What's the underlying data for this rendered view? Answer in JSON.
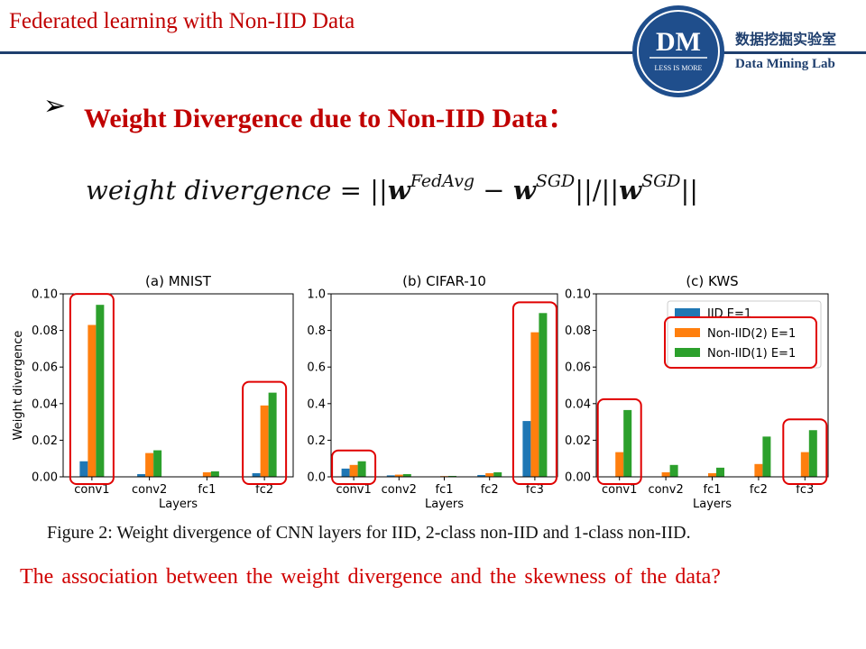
{
  "header": {
    "title": "Federated learning with Non-IID Data",
    "logo_text": "DM",
    "logo_tagline": "LESS IS MORE",
    "lab_name_cn": "数据挖掘实验室",
    "lab_name_en": "Data Mining Lab"
  },
  "section": {
    "bullet": "➢",
    "heading": "Weight Divergence due to Non-IID Data："
  },
  "formula": {
    "lhs": "weight divergence",
    "eq": " = ||",
    "w1": "w",
    "sup1": "FedAvg",
    "minus": " − ",
    "w2": "w",
    "sup2": "SGD",
    "mid": "||/||",
    "w3": "w",
    "sup3": "SGD",
    "end": "||"
  },
  "colors": {
    "iid": "#1f77b4",
    "noniid2": "#ff7f0e",
    "noniid1": "#2ca02c",
    "highlight": "#e00000"
  },
  "chart_data": [
    {
      "type": "bar",
      "title": "(a) MNIST",
      "xlabel": "Layers",
      "ylabel": "Weight divergence",
      "ylim": [
        0,
        0.1
      ],
      "yticks": [
        "0.00",
        "0.02",
        "0.04",
        "0.06",
        "0.08",
        "0.10"
      ],
      "categories": [
        "conv1",
        "conv2",
        "fc1",
        "fc2"
      ],
      "series": [
        {
          "name": "IID E=1",
          "values": [
            0.0085,
            0.0015,
            0.0,
            0.002
          ]
        },
        {
          "name": "Non-IID(2) E=1",
          "values": [
            0.083,
            0.013,
            0.0025,
            0.039
          ]
        },
        {
          "name": "Non-IID(1) E=1",
          "values": [
            0.094,
            0.0145,
            0.003,
            0.046
          ]
        }
      ],
      "highlighted": [
        "conv1",
        "fc2"
      ]
    },
    {
      "type": "bar",
      "title": "(b) CIFAR-10",
      "xlabel": "Layers",
      "ylabel": "",
      "ylim": [
        0,
        1.0
      ],
      "yticks": [
        "0.0",
        "0.2",
        "0.4",
        "0.6",
        "0.8",
        "1.0"
      ],
      "categories": [
        "conv1",
        "conv2",
        "fc1",
        "fc2",
        "fc3"
      ],
      "series": [
        {
          "name": "IID E=1",
          "values": [
            0.045,
            0.008,
            0.002,
            0.01,
            0.305
          ]
        },
        {
          "name": "Non-IID(2) E=1",
          "values": [
            0.065,
            0.012,
            0.004,
            0.02,
            0.79
          ]
        },
        {
          "name": "Non-IID(1) E=1",
          "values": [
            0.085,
            0.015,
            0.005,
            0.025,
            0.895
          ]
        }
      ],
      "highlighted": [
        "conv1",
        "fc3"
      ]
    },
    {
      "type": "bar",
      "title": "(c) KWS",
      "xlabel": "Layers",
      "ylabel": "",
      "ylim": [
        0,
        0.1
      ],
      "yticks": [
        "0.00",
        "0.02",
        "0.04",
        "0.06",
        "0.08",
        "0.10"
      ],
      "categories": [
        "conv1",
        "conv2",
        "fc1",
        "fc2",
        "fc3"
      ],
      "series": [
        {
          "name": "IID E=1",
          "values": [
            0.0,
            0.0,
            0.0,
            0.0,
            0.0
          ]
        },
        {
          "name": "Non-IID(2) E=1",
          "values": [
            0.0135,
            0.0025,
            0.002,
            0.007,
            0.0135
          ]
        },
        {
          "name": "Non-IID(1) E=1",
          "values": [
            0.0365,
            0.0065,
            0.005,
            0.022,
            0.0255
          ]
        }
      ],
      "legend_position": "top-right",
      "highlighted": [
        "conv1",
        "fc3"
      ]
    }
  ],
  "caption": "Figure 2: Weight divergence of CNN layers for IID, 2-class non-IID and 1-class non-IID.",
  "question": "The association between the weight divergence and the skewness of the data?"
}
